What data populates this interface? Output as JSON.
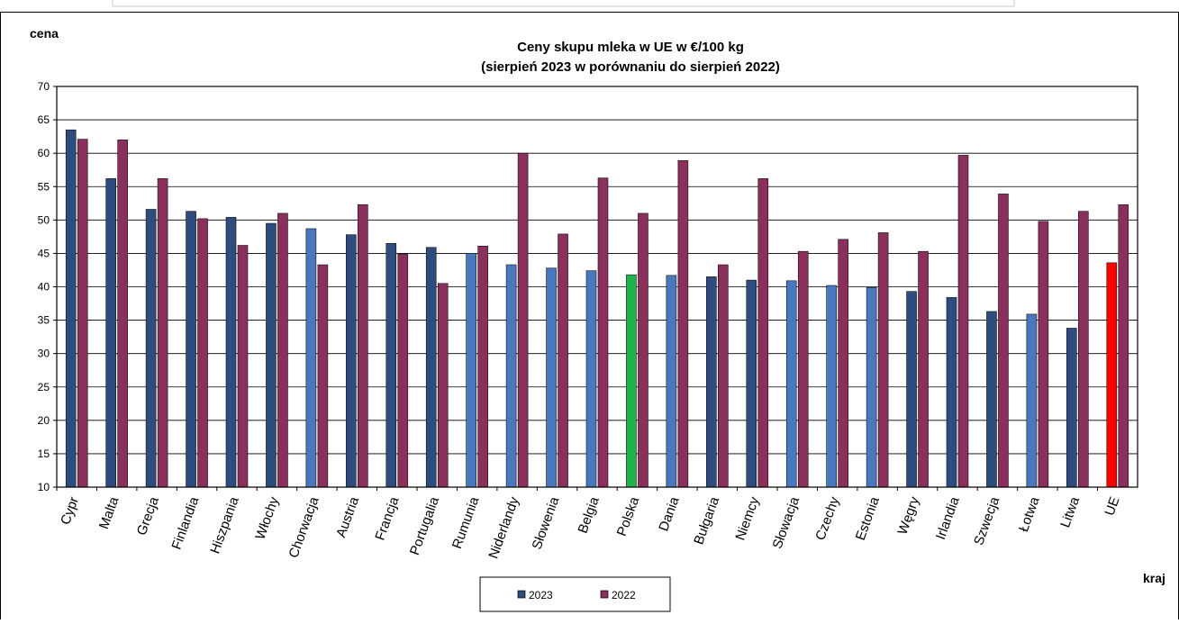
{
  "chart_data": {
    "type": "bar",
    "title": "Ceny skupu mleka  w UE w €/100 kg",
    "subtitle": "(sierpień 2023  w porównaniu do sierpień 2022)",
    "ylabel": "cena",
    "xlabel": "kraj",
    "ylim": [
      10,
      70
    ],
    "yticks": [
      10,
      15,
      20,
      25,
      30,
      35,
      40,
      45,
      50,
      55,
      60,
      65,
      70
    ],
    "grid": true,
    "legend_position": "bottom-center",
    "categories": [
      "Cypr",
      "Malta",
      "Grecja",
      "Finlandia",
      "Hiszpania",
      "Włochy",
      "Chorwacja",
      "Austria",
      "Francja",
      "Portugalia",
      "Rumunia",
      "Niderlandy",
      "Słowenia",
      "Belgia",
      "Polska",
      "Dania",
      "Bułgaria",
      "Niemcy",
      "Słowacja",
      "Czechy",
      "Estonia",
      "Węgry",
      "Irlandia",
      "Szwecja",
      "Łotwa",
      "Litwa",
      "UE"
    ],
    "series": [
      {
        "name": "2023",
        "color": "#2E4D7E",
        "values": [
          63.5,
          56.2,
          51.6,
          51.3,
          50.4,
          49.5,
          48.7,
          47.8,
          46.5,
          45.9,
          45.0,
          43.3,
          42.8,
          42.4,
          41.8,
          41.7,
          41.5,
          41.0,
          40.9,
          40.2,
          39.9,
          39.3,
          38.4,
          36.3,
          35.9,
          33.8,
          43.6
        ],
        "highlights": {
          "Polska": "#21B24B",
          "UE": "#FF0000"
        }
      },
      {
        "name": "2022",
        "color": "#8B2F5C",
        "values": [
          62.1,
          62.0,
          56.2,
          50.2,
          46.2,
          51.0,
          43.3,
          52.3,
          44.9,
          40.5,
          46.1,
          60.0,
          47.9,
          56.3,
          51.0,
          58.9,
          43.3,
          56.2,
          45.3,
          47.1,
          48.1,
          45.3,
          59.7,
          53.9,
          49.8,
          51.3,
          52.3
        ]
      }
    ]
  },
  "colors": {
    "bar_2023_dark": "#2E4D7E",
    "bar_2023_light": "#4A78BE",
    "bar_2022": "#8B2F5C",
    "highlight_polska": "#21B24B",
    "highlight_ue": "#FF0000"
  }
}
